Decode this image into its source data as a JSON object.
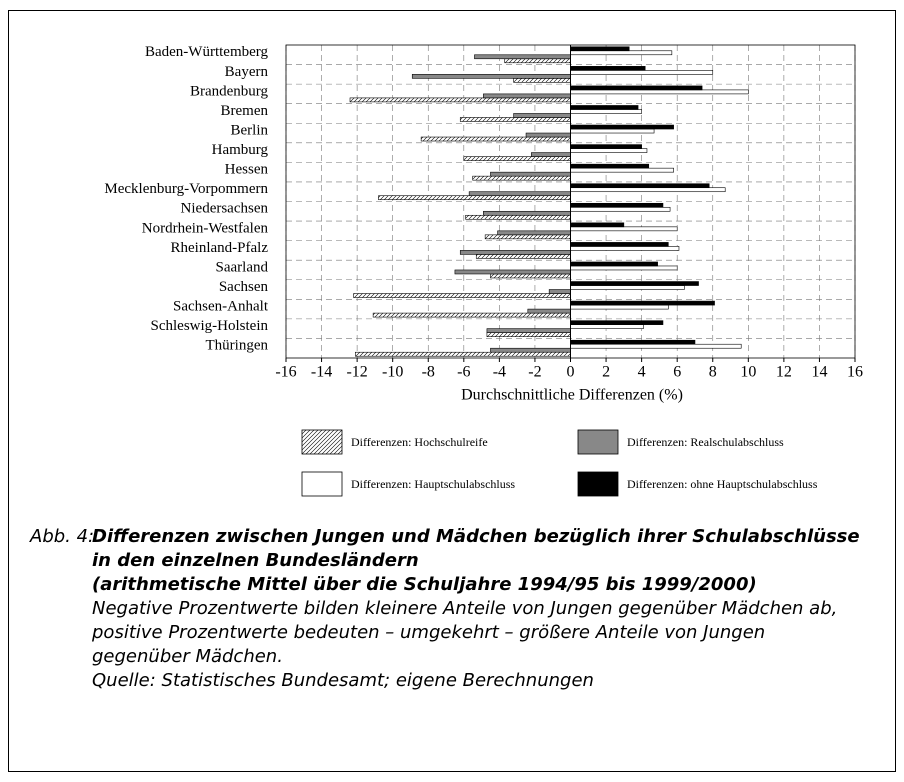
{
  "chart_data": {
    "type": "hbar",
    "categories": [
      "Baden-Württemberg",
      "Bayern",
      "Brandenburg",
      "Bremen",
      "Berlin",
      "Hamburg",
      "Hessen",
      "Mecklenburg-Vorpommern",
      "Niedersachsen",
      "Nordrhein-Westfalen",
      "Rheinland-Pfalz",
      "Saarland",
      "Sachsen",
      "Sachsen-Anhalt",
      "Schleswig-Holstein",
      "Thüringen"
    ],
    "series": [
      {
        "name": "Differenzen: Hochschulreife",
        "color": "#ffffff",
        "hatch": true,
        "values": [
          -3.7,
          -3.2,
          -12.4,
          -6.2,
          -8.4,
          -6.0,
          -5.5,
          -10.8,
          -5.9,
          -4.8,
          -5.3,
          -4.5,
          -12.2,
          -11.1,
          -4.7,
          -12.1
        ]
      },
      {
        "name": "Differenzen: Realschulabschluss",
        "color": "#888888",
        "values": [
          -5.4,
          -8.9,
          -4.9,
          -3.2,
          -2.5,
          -2.2,
          -4.5,
          -5.7,
          -4.9,
          -4.1,
          -6.2,
          -6.5,
          -1.2,
          -2.4,
          -4.7,
          -4.5
        ]
      },
      {
        "name": "Differenzen: Hauptschulabschluss",
        "color": "#ffffff",
        "values": [
          5.7,
          8.0,
          10.0,
          4.0,
          4.7,
          4.3,
          5.8,
          8.7,
          5.6,
          6.0,
          6.1,
          6.0,
          6.4,
          5.5,
          4.1,
          9.6
        ]
      },
      {
        "name": "Differenzen: ohne Hauptschulabschluss",
        "color": "#000000",
        "values": [
          3.3,
          4.2,
          7.4,
          3.8,
          5.8,
          4.0,
          4.4,
          7.8,
          5.2,
          3.0,
          5.5,
          4.9,
          7.2,
          8.1,
          5.2,
          7.0
        ]
      }
    ],
    "xlabel": "Durchschnittliche Differenzen (%)",
    "xlim": [
      -16,
      16
    ],
    "xticks": [
      -16,
      -14,
      -12,
      -10,
      -8,
      -6,
      -4,
      -2,
      0,
      2,
      4,
      6,
      8,
      10,
      12,
      14,
      16
    ],
    "grid": true
  },
  "caption": {
    "label": "Abb. 4:",
    "title": [
      "Differenzen zwischen Jungen und Mädchen bezüglich ihrer Schulabschlüsse",
      "in den einzelnen Bundesländern",
      "(arithmetische Mittel über die Schuljahre 1994/95 bis 1999/2000)"
    ],
    "note": [
      "Negative Prozentwerte bilden kleinere Anteile von Jungen gegenüber Mädchen ab,",
      "positive Prozentwerte bedeuten – umgekehrt – größere Anteile von Jungen",
      "gegenüber Mädchen."
    ],
    "source": "Quelle: Statistisches Bundesamt; eigene Berechnungen"
  }
}
